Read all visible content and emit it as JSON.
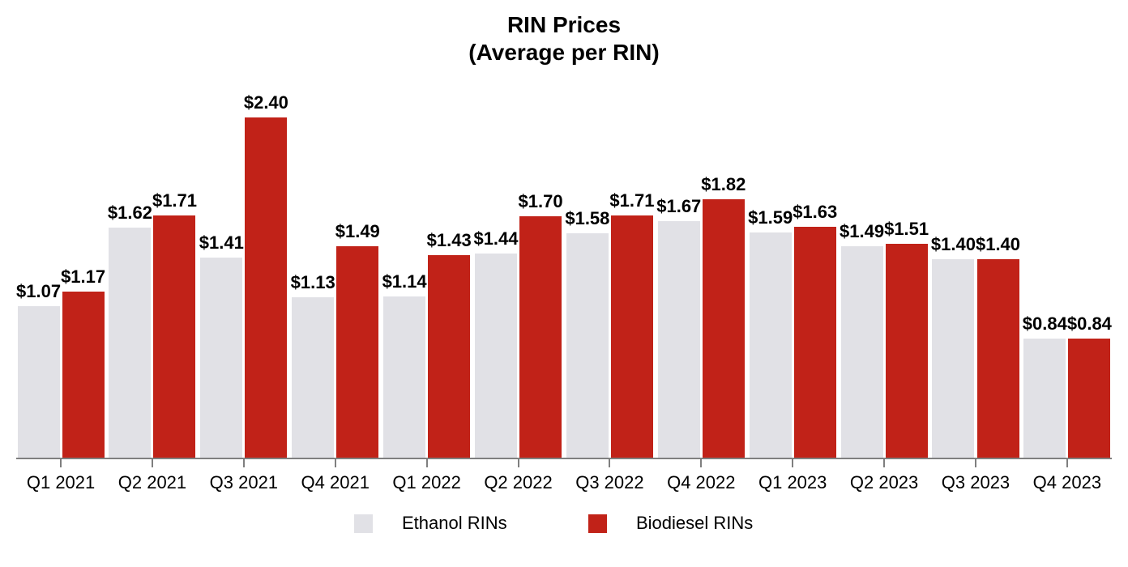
{
  "title": {
    "line1": "RIN Prices",
    "line2": "(Average per RIN)"
  },
  "chart_data": {
    "type": "bar",
    "title": "RIN Prices (Average per RIN)",
    "xlabel": "",
    "ylabel": "",
    "ylim": [
      0,
      2.5
    ],
    "grid": false,
    "legend_position": "bottom",
    "value_prefix": "$",
    "axis_color": "#7f7f7f",
    "categories": [
      "Q1 2021",
      "Q2 2021",
      "Q3 2021",
      "Q4 2021",
      "Q1 2022",
      "Q2 2022",
      "Q3 2022",
      "Q4 2022",
      "Q1 2023",
      "Q2 2023",
      "Q3 2023",
      "Q4 2023"
    ],
    "series": [
      {
        "name": "Ethanol RINs",
        "color": "#e1e1e6",
        "values": [
          1.07,
          1.62,
          1.41,
          1.13,
          1.14,
          1.44,
          1.58,
          1.67,
          1.59,
          1.49,
          1.4,
          0.84
        ],
        "labels": [
          "$1.07",
          "$1.62",
          "$1.41",
          "$1.13",
          "$1.14",
          "$1.44",
          "$1.58",
          "$1.67",
          "$1.59",
          "$1.49",
          "$1.40",
          "$0.84"
        ]
      },
      {
        "name": "Biodiesel RINs",
        "color": "#c12218",
        "values": [
          1.17,
          1.71,
          2.4,
          1.49,
          1.43,
          1.7,
          1.71,
          1.82,
          1.63,
          1.51,
          1.4,
          0.84
        ],
        "labels": [
          "$1.17",
          "$1.71",
          "$2.40",
          "$1.49",
          "$1.43",
          "$1.70",
          "$1.71",
          "$1.82",
          "$1.63",
          "$1.51",
          "$1.40",
          "$0.84"
        ]
      }
    ]
  },
  "legend": {
    "items": [
      {
        "label": "Ethanol RINs",
        "color": "#e1e1e6"
      },
      {
        "label": "Biodiesel RINs",
        "color": "#c12218"
      }
    ]
  }
}
